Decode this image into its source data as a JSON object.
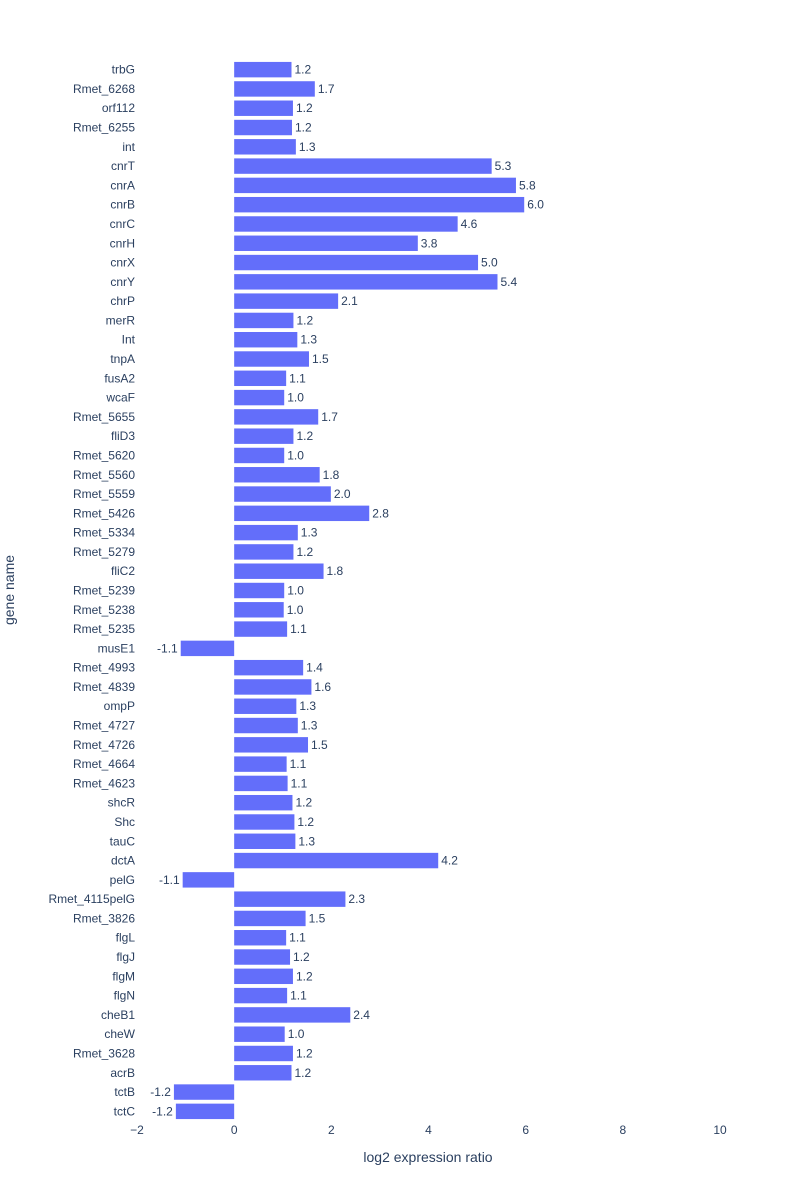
{
  "chart_data": {
    "type": "bar",
    "orientation": "horizontal",
    "categories": [
      "trbG",
      "Rmet_6268",
      "orf112",
      "Rmet_6255",
      "int",
      "cnrT",
      "cnrA",
      "cnrB",
      "cnrC",
      "cnrH",
      "cnrX",
      "cnrY",
      "chrP",
      "merR",
      "Int",
      "tnpA",
      "fusA2",
      "wcaF",
      "Rmet_5655",
      "fliD3",
      "Rmet_5620",
      "Rmet_5560",
      "Rmet_5559",
      "Rmet_5426",
      "Rmet_5334",
      "Rmet_5279",
      "fliC2",
      "Rmet_5239",
      "Rmet_5238",
      "Rmet_5235",
      "musE1",
      "Rmet_4993",
      "Rmet_4839",
      "ompP",
      "Rmet_4727",
      "Rmet_4726",
      "Rmet_4664",
      "Rmet_4623",
      "shcR",
      "Shc",
      "tauC",
      "dctA",
      "pelG",
      "Rmet_4115pelG",
      "Rmet_3826",
      "flgL",
      "flgJ",
      "flgM",
      "flgN",
      "cheB1",
      "cheW",
      "Rmet_3628",
      "acrB",
      "tctB",
      "tctC"
    ],
    "values": [
      1.18,
      1.66,
      1.21,
      1.19,
      1.27,
      5.3,
      5.8,
      5.97,
      4.6,
      3.78,
      5.02,
      5.42,
      2.14,
      1.22,
      1.3,
      1.54,
      1.07,
      1.03,
      1.73,
      1.22,
      1.03,
      1.76,
      1.99,
      2.78,
      1.31,
      1.22,
      1.84,
      1.03,
      1.02,
      1.09,
      -1.1,
      1.42,
      1.59,
      1.28,
      1.31,
      1.52,
      1.08,
      1.1,
      1.2,
      1.24,
      1.26,
      4.2,
      -1.06,
      2.29,
      1.47,
      1.07,
      1.15,
      1.21,
      1.09,
      2.39,
      1.04,
      1.21,
      1.18,
      -1.24,
      -1.2
    ],
    "labels": [
      "1.2",
      "1.7",
      "1.2",
      "1.2",
      "1.3",
      "5.3",
      "5.8",
      "6.0",
      "4.6",
      "3.8",
      "5.0",
      "5.4",
      "2.1",
      "1.2",
      "1.3",
      "1.5",
      "1.1",
      "1.0",
      "1.7",
      "1.2",
      "1.0",
      "1.8",
      "2.0",
      "2.8",
      "1.3",
      "1.2",
      "1.8",
      "1.0",
      "1.0",
      "1.1",
      "-1.1",
      "1.4",
      "1.6",
      "1.3",
      "1.3",
      "1.5",
      "1.1",
      "1.1",
      "1.2",
      "1.2",
      "1.3",
      "4.2",
      "-1.1",
      "2.3",
      "1.5",
      "1.1",
      "1.2",
      "1.2",
      "1.1",
      "2.4",
      "1.0",
      "1.2",
      "1.2",
      "-1.2",
      "-1.2"
    ],
    "xlabel": "log2 expression ratio",
    "ylabel": "gene name",
    "xlim": [
      -2,
      10
    ],
    "xticks": [
      -2,
      0,
      2,
      4,
      6,
      8,
      10
    ],
    "xtick_labels": [
      "−2",
      "0",
      "2",
      "4",
      "6",
      "8",
      "10"
    ],
    "grid": false,
    "bar_color": "#636efa"
  }
}
